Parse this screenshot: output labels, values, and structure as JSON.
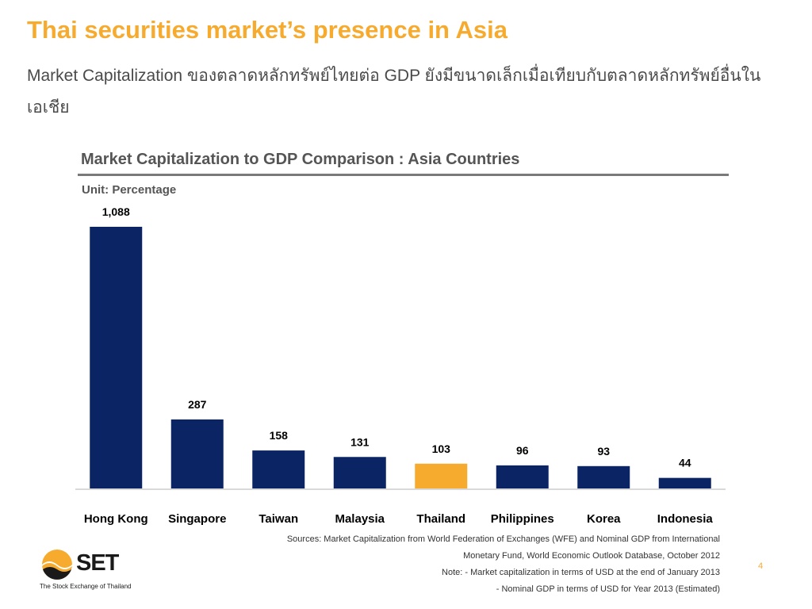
{
  "slide": {
    "title": "Thai securities market’s presence in Asia",
    "subtitle": "Market Capitalization ของตลาดหลักทรัพย์ไทยต่อ GDP ยังมีขนาดเล็กเมื่อเทียบกับตลาดหลักทรัพย์อื่นในเอเชีย",
    "page_number": "4"
  },
  "chart_data": {
    "type": "bar",
    "title": "Market Capitalization to GDP Comparison : Asia Countries",
    "unit_label": "Unit: Percentage",
    "xlabel": "",
    "ylabel": "",
    "categories": [
      "Hong Kong",
      "Singapore",
      "Taiwan",
      "Malaysia",
      "Thailand",
      "Philippines",
      "Korea",
      "Indonesia"
    ],
    "values": [
      1088,
      287,
      158,
      131,
      103,
      96,
      93,
      44
    ],
    "value_labels": [
      "1,088",
      "287",
      "158",
      "131",
      "103",
      "96",
      "93",
      "44"
    ],
    "ylim": [
      0,
      1088
    ],
    "grid": false,
    "legend": "none",
    "colors": {
      "default": "#0b2463",
      "highlight": "#f6ab2f",
      "highlight_category": "Thailand"
    }
  },
  "footer": {
    "sources_lines": [
      "Sources: Market Capitalization from World Federation of Exchanges (WFE) and Nominal GDP from International",
      "Monetary Fund, World Economic Outlook Database, October 2012",
      "Note:  - Market capitalization in terms of USD at the end of January 2013",
      "- Nominal GDP in terms of USD for Year 2013 (Estimated)"
    ]
  },
  "logo": {
    "text": "SET",
    "tagline": "The Stock Exchange of Thailand"
  },
  "colors": {
    "accent": "#f6ab2f",
    "bar": "#0b2463"
  }
}
